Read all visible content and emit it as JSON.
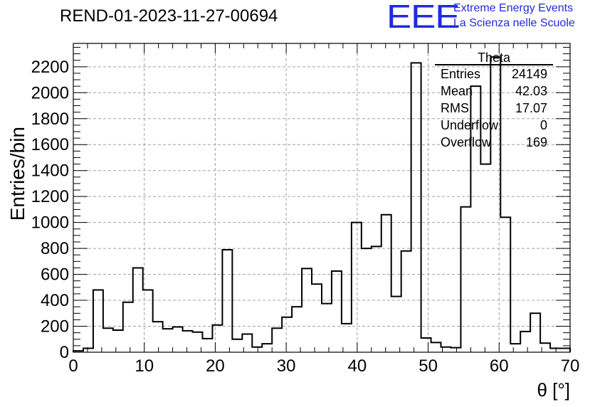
{
  "header": {
    "run_title": "REND-01-2023-11-27-00694",
    "logo_text": "EEE",
    "logo_line1": "Extreme Energy Events",
    "logo_line2": "La Scienza nelle Scuole"
  },
  "stats": {
    "title": "Theta",
    "rows": [
      {
        "label": "Entries",
        "value": "24149"
      },
      {
        "label": "Mean",
        "value": "42.03"
      },
      {
        "label": "RMS",
        "value": "17.07"
      },
      {
        "label": "Underflow",
        "value": "0"
      },
      {
        "label": "Overflow",
        "value": "169"
      }
    ]
  },
  "chart_data": {
    "type": "bar",
    "title": "REND-01-2023-11-27-00694",
    "xlabel": "θ [°]",
    "ylabel": "Entries/bin",
    "xlim": [
      0,
      70
    ],
    "ylim": [
      0,
      2380
    ],
    "grid": true,
    "bin_width": 1.4,
    "x_ticks": [
      0,
      10,
      20,
      30,
      40,
      50,
      60,
      70
    ],
    "y_ticks": [
      0,
      200,
      400,
      600,
      800,
      1000,
      1200,
      1400,
      1600,
      1800,
      2000,
      2200
    ],
    "values": [
      10,
      30,
      480,
      185,
      170,
      385,
      650,
      480,
      235,
      180,
      195,
      165,
      155,
      105,
      210,
      790,
      100,
      140,
      40,
      65,
      185,
      270,
      350,
      645,
      525,
      375,
      625,
      220,
      1000,
      800,
      815,
      1060,
      430,
      780,
      2230,
      110,
      75,
      40,
      35,
      1120,
      2050,
      1450,
      2275,
      1040,
      65,
      160,
      300,
      70,
      30,
      30
    ],
    "colors": {
      "line": "#000000",
      "grid": "#a0a0a0",
      "logo": "#1f2be0"
    }
  }
}
